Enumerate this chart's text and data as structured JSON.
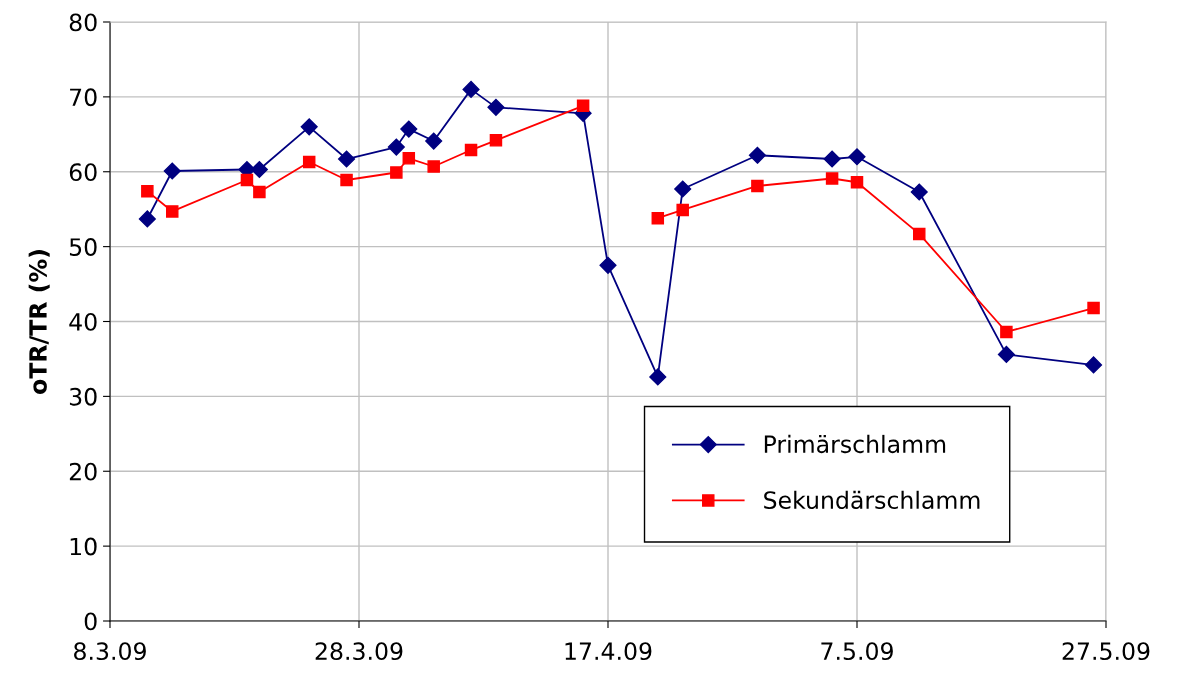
{
  "chart_data": {
    "type": "line",
    "ylabel": "oTR/TR (%)",
    "x": [
      "2009-03-11",
      "2009-03-13",
      "2009-03-19",
      "2009-03-20",
      "2009-03-24",
      "2009-03-27",
      "2009-03-31",
      "2009-04-01",
      "2009-04-03",
      "2009-04-06",
      "2009-04-08",
      "2009-04-15",
      "2009-04-17",
      "2009-04-21",
      "2009-04-23",
      "2009-04-29",
      "2009-05-05",
      "2009-05-07",
      "2009-05-12",
      "2009-05-19",
      "2009-05-26"
    ],
    "series": [
      {
        "name": "Primärschlamm",
        "color": "#000080",
        "marker": "diamond",
        "values": [
          53.7,
          60.1,
          60.3,
          60.3,
          66.0,
          61.7,
          63.3,
          65.7,
          64.1,
          71.0,
          68.6,
          67.8,
          47.5,
          32.6,
          57.7,
          62.2,
          61.7,
          62.0,
          57.3,
          35.6,
          34.2
        ]
      },
      {
        "name": "Sekundärschlamm",
        "color": "#ff0000",
        "marker": "square",
        "values": [
          57.4,
          54.7,
          58.9,
          57.3,
          61.3,
          58.9,
          59.9,
          61.8,
          60.7,
          62.9,
          64.2,
          68.8,
          null,
          53.8,
          54.9,
          58.1,
          59.1,
          58.6,
          51.7,
          38.6,
          41.8
        ]
      }
    ],
    "xlim": [
      "2009-03-08",
      "2009-05-27"
    ],
    "xticks": [
      {
        "value": "2009-03-08",
        "label": "8.3.09"
      },
      {
        "value": "2009-03-28",
        "label": "28.3.09"
      },
      {
        "value": "2009-04-17",
        "label": "17.4.09"
      },
      {
        "value": "2009-05-07",
        "label": "7.5.09"
      },
      {
        "value": "2009-05-27",
        "label": "27.5.09"
      }
    ],
    "ylim": [
      0,
      80
    ],
    "yticks": [
      0,
      10,
      20,
      30,
      40,
      50,
      60,
      70,
      80
    ],
    "grid": true,
    "legend": "bottom right"
  }
}
